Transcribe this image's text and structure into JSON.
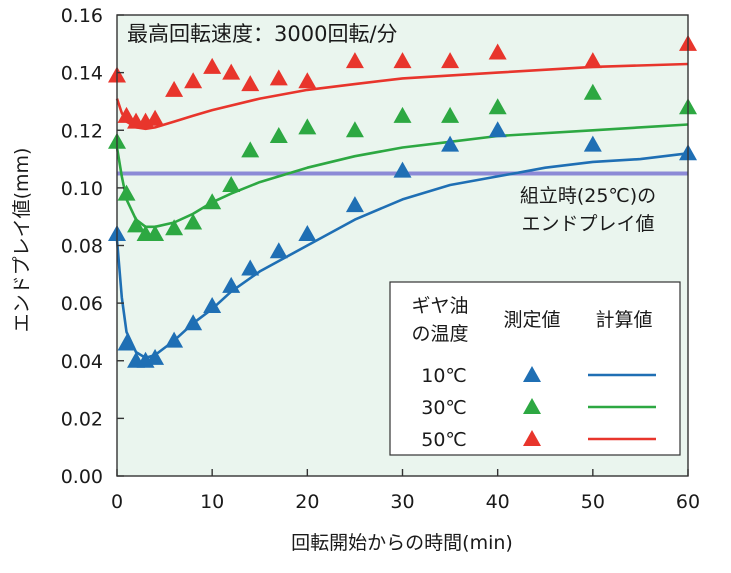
{
  "chart_data": {
    "type": "scatter",
    "title": "最高回転速度：3000回転/分",
    "xlabel": "回転開始からの時間(min)",
    "ylabel": "エンドプレイ値(mm)",
    "xlim": [
      0,
      60
    ],
    "ylim": [
      0,
      0.16
    ],
    "x_ticks": [
      "0",
      "10",
      "20",
      "30",
      "40",
      "50",
      "60"
    ],
    "y_ticks": [
      "0.00",
      "0.02",
      "0.04",
      "0.06",
      "0.08",
      "0.10",
      "0.12",
      "0.14",
      "0.16"
    ],
    "grid": false,
    "background_color": "#eaf5ee",
    "reference_line": {
      "y": 0.105,
      "color": "#8c8ad6",
      "label_lines": [
        "組立時(25℃)の",
        "エンドプレイ値"
      ]
    },
    "legend": {
      "placement": "bottom-right",
      "header_lines": [
        "ギヤ油",
        "の温度"
      ],
      "measured_label": "測定値",
      "calculated_label": "計算値"
    },
    "series": [
      {
        "name": "10℃",
        "color": "#1f6fb4",
        "measured": [
          [
            0,
            0.084
          ],
          [
            1,
            0.046
          ],
          [
            2,
            0.04
          ],
          [
            3,
            0.04
          ],
          [
            4,
            0.041
          ],
          [
            6,
            0.047
          ],
          [
            8,
            0.053
          ],
          [
            10,
            0.059
          ],
          [
            12,
            0.066
          ],
          [
            14,
            0.072
          ],
          [
            17,
            0.078
          ],
          [
            20,
            0.084
          ],
          [
            25,
            0.094
          ],
          [
            30,
            0.106
          ],
          [
            35,
            0.115
          ],
          [
            40,
            0.12
          ],
          [
            50,
            0.115
          ],
          [
            60,
            0.112
          ]
        ],
        "calculated": [
          [
            0,
            0.082
          ],
          [
            0.5,
            0.062
          ],
          [
            1,
            0.05
          ],
          [
            2,
            0.043
          ],
          [
            3,
            0.041
          ],
          [
            4,
            0.042
          ],
          [
            6,
            0.047
          ],
          [
            8,
            0.053
          ],
          [
            10,
            0.058
          ],
          [
            12,
            0.064
          ],
          [
            15,
            0.071
          ],
          [
            20,
            0.08
          ],
          [
            25,
            0.089
          ],
          [
            30,
            0.096
          ],
          [
            35,
            0.101
          ],
          [
            40,
            0.104
          ],
          [
            45,
            0.107
          ],
          [
            50,
            0.109
          ],
          [
            55,
            0.11
          ],
          [
            60,
            0.112
          ]
        ]
      },
      {
        "name": "30℃",
        "color": "#2da842",
        "measured": [
          [
            0,
            0.116
          ],
          [
            1,
            0.098
          ],
          [
            2,
            0.087
          ],
          [
            3,
            0.084
          ],
          [
            4,
            0.084
          ],
          [
            6,
            0.086
          ],
          [
            8,
            0.088
          ],
          [
            10,
            0.095
          ],
          [
            12,
            0.101
          ],
          [
            14,
            0.113
          ],
          [
            17,
            0.118
          ],
          [
            20,
            0.121
          ],
          [
            25,
            0.12
          ],
          [
            30,
            0.125
          ],
          [
            35,
            0.125
          ],
          [
            40,
            0.128
          ],
          [
            50,
            0.133
          ],
          [
            60,
            0.128
          ]
        ],
        "calculated": [
          [
            0,
            0.114
          ],
          [
            0.5,
            0.104
          ],
          [
            1,
            0.096
          ],
          [
            2,
            0.089
          ],
          [
            3,
            0.0865
          ],
          [
            4,
            0.0865
          ],
          [
            6,
            0.088
          ],
          [
            8,
            0.091
          ],
          [
            10,
            0.095
          ],
          [
            12,
            0.098
          ],
          [
            15,
            0.102
          ],
          [
            20,
            0.107
          ],
          [
            25,
            0.111
          ],
          [
            30,
            0.114
          ],
          [
            35,
            0.116
          ],
          [
            40,
            0.118
          ],
          [
            50,
            0.12
          ],
          [
            60,
            0.122
          ]
        ]
      },
      {
        "name": "50℃",
        "color": "#e8352c",
        "measured": [
          [
            0,
            0.139
          ],
          [
            1,
            0.125
          ],
          [
            2,
            0.123
          ],
          [
            3,
            0.123
          ],
          [
            4,
            0.124
          ],
          [
            6,
            0.134
          ],
          [
            8,
            0.137
          ],
          [
            10,
            0.142
          ],
          [
            12,
            0.14
          ],
          [
            14,
            0.136
          ],
          [
            17,
            0.138
          ],
          [
            20,
            0.137
          ],
          [
            25,
            0.144
          ],
          [
            30,
            0.144
          ],
          [
            35,
            0.144
          ],
          [
            40,
            0.147
          ],
          [
            50,
            0.144
          ],
          [
            60,
            0.15
          ]
        ],
        "calculated": [
          [
            0,
            0.131
          ],
          [
            0.5,
            0.126
          ],
          [
            1,
            0.123
          ],
          [
            2,
            0.121
          ],
          [
            3,
            0.1205
          ],
          [
            4,
            0.121
          ],
          [
            6,
            0.123
          ],
          [
            8,
            0.125
          ],
          [
            10,
            0.127
          ],
          [
            15,
            0.131
          ],
          [
            20,
            0.134
          ],
          [
            25,
            0.136
          ],
          [
            30,
            0.138
          ],
          [
            40,
            0.14
          ],
          [
            50,
            0.142
          ],
          [
            60,
            0.143
          ]
        ]
      }
    ]
  }
}
